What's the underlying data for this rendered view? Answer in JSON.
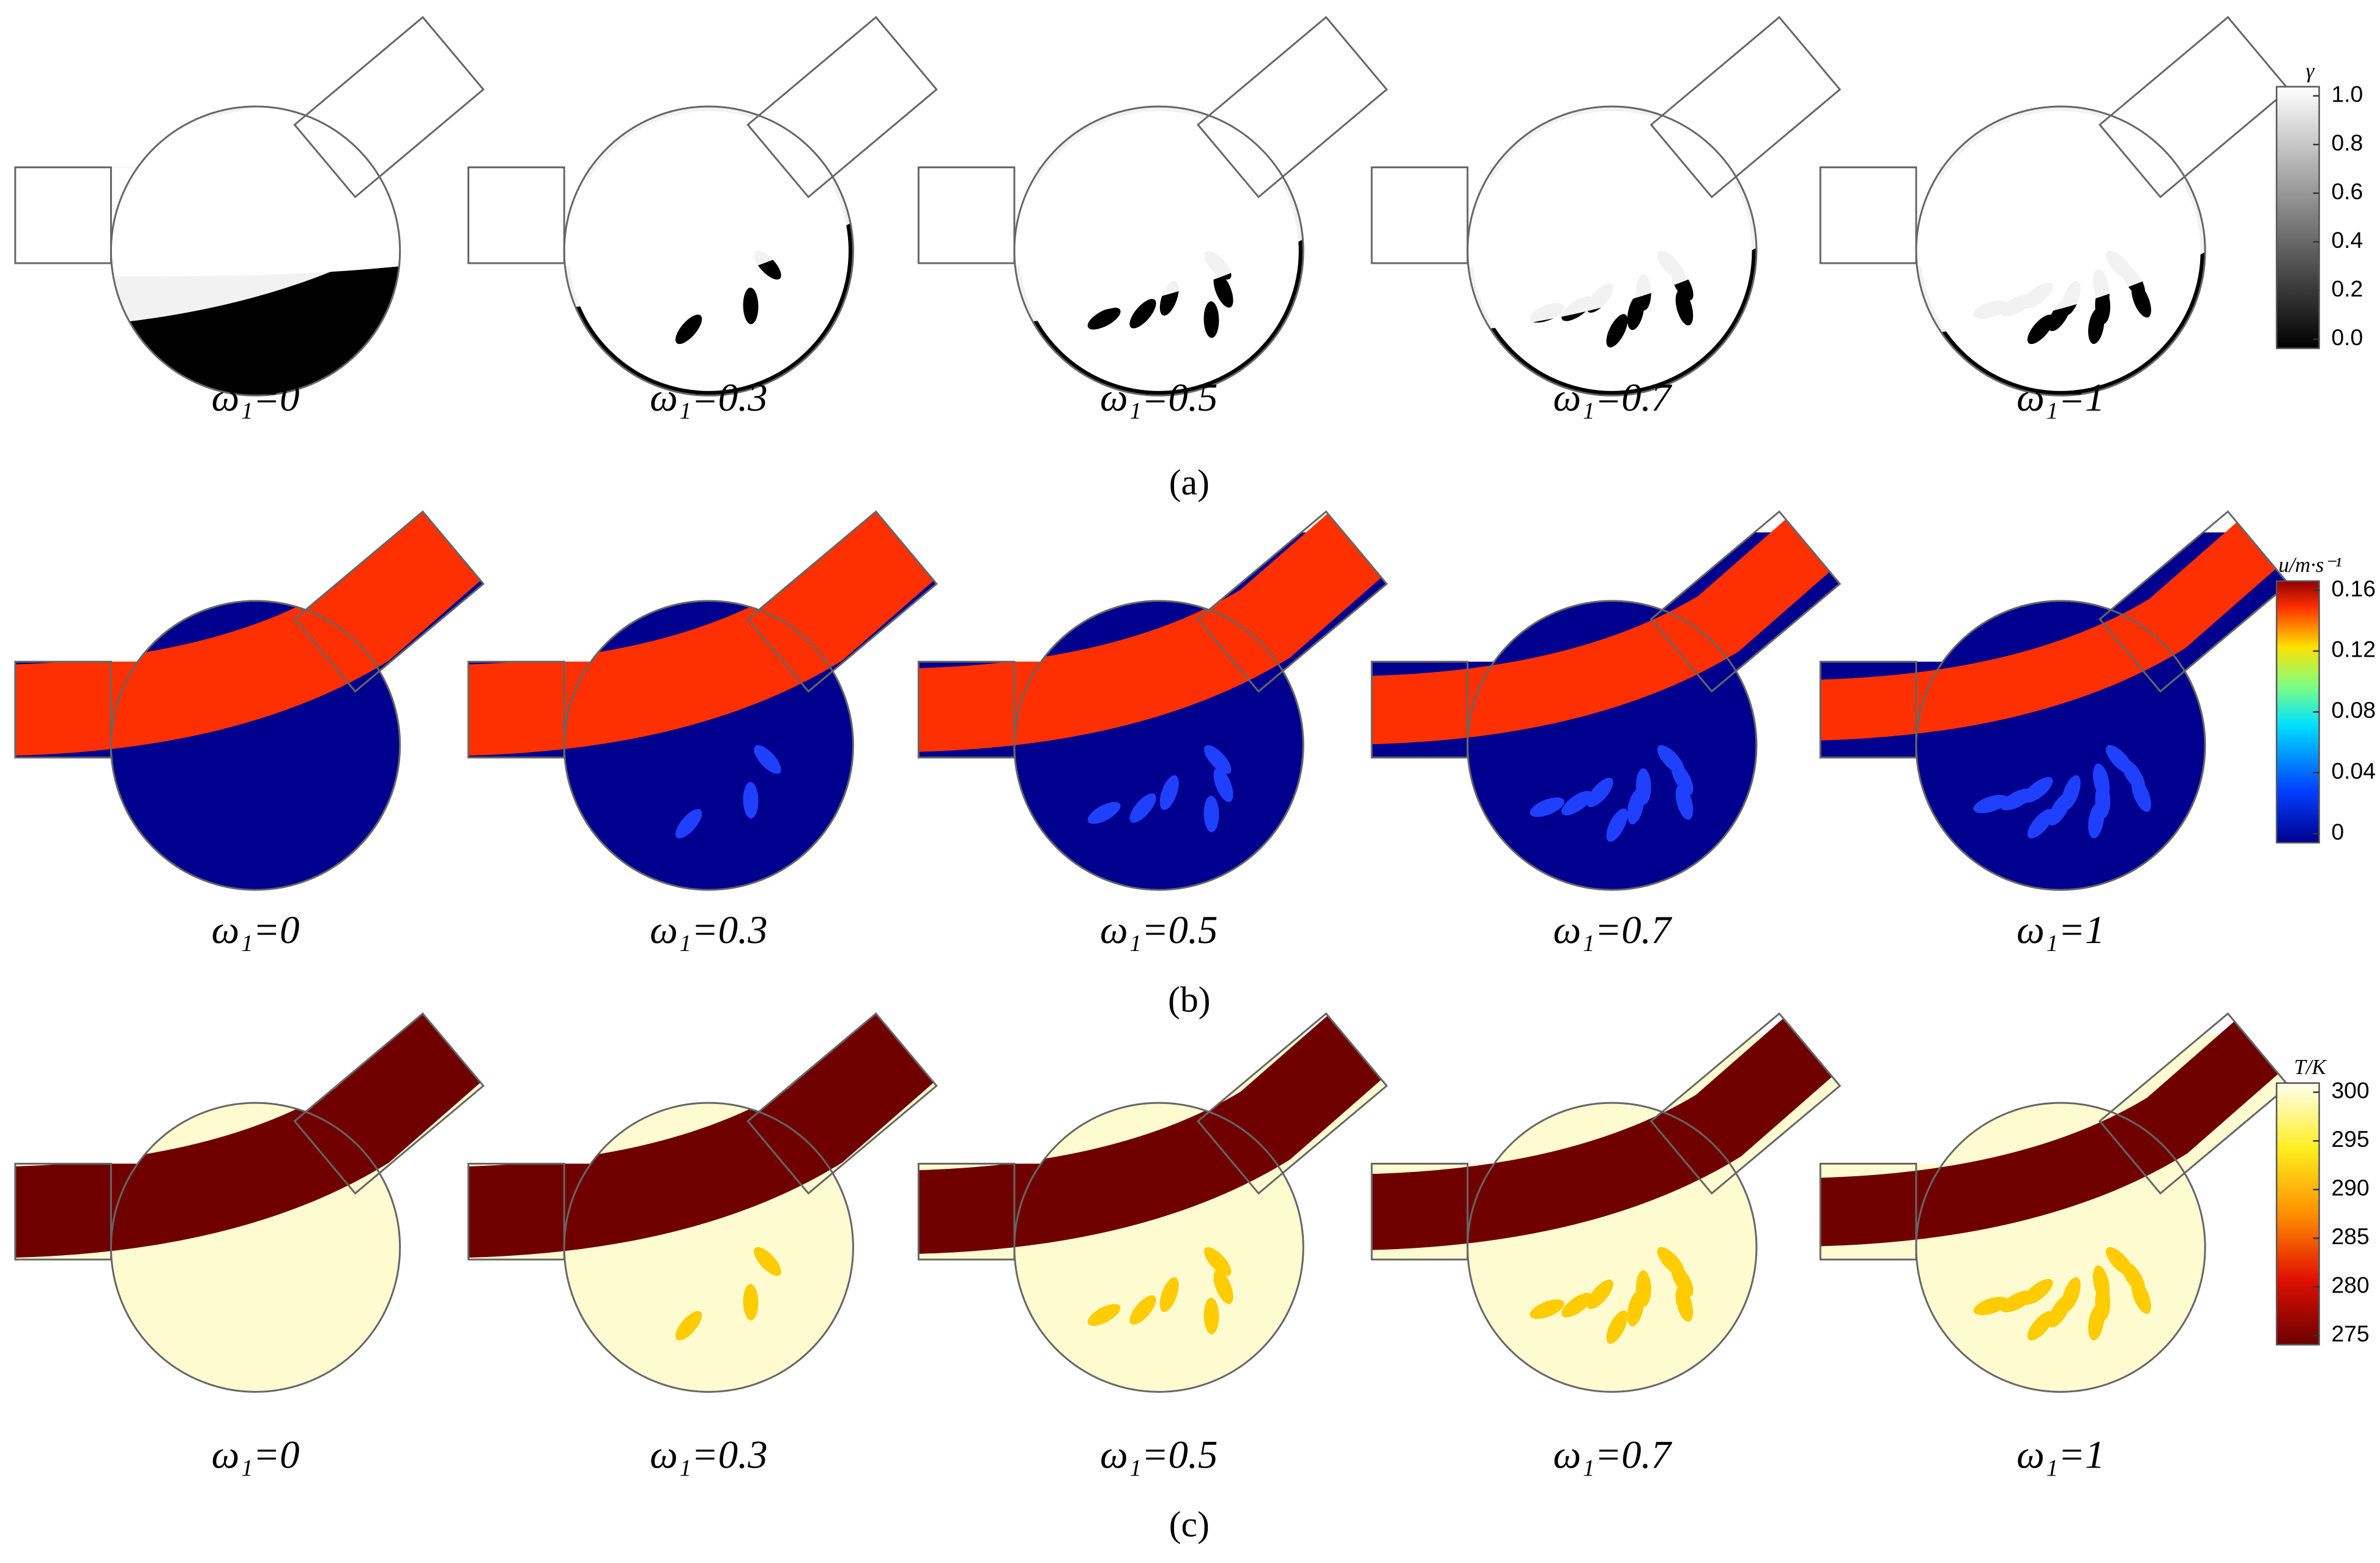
{
  "rows": [
    {
      "panels": [
        "ω₁=0",
        "ω₁=0.3",
        "ω₁=0.5",
        "ω₁=0.7",
        "ω₁=1"
      ],
      "caption": "(a)",
      "colorbar": {
        "title": "γ",
        "ticks": [
          "1.0",
          "0.8",
          "0.6",
          "0.4",
          "0.2",
          "0.0"
        ]
      }
    },
    {
      "panels": [
        "ω₁=0",
        "ω₁=0.3",
        "ω₁=0.5",
        "ω₁=0.7",
        "ω₁=1"
      ],
      "caption": "(b)",
      "colorbar": {
        "title": "u/m·s⁻¹",
        "ticks": [
          "0.16",
          "0.12",
          "0.08",
          "0.04",
          "0"
        ]
      }
    },
    {
      "panels": [
        "ω₁=0",
        "ω₁=0.3",
        "ω₁=0.5",
        "ω₁=0.7",
        "ω₁=1"
      ],
      "caption": "(c)",
      "colorbar": {
        "title": "T/K",
        "ticks": [
          "300",
          "295",
          "290",
          "285",
          "280",
          "275"
        ]
      }
    }
  ]
}
